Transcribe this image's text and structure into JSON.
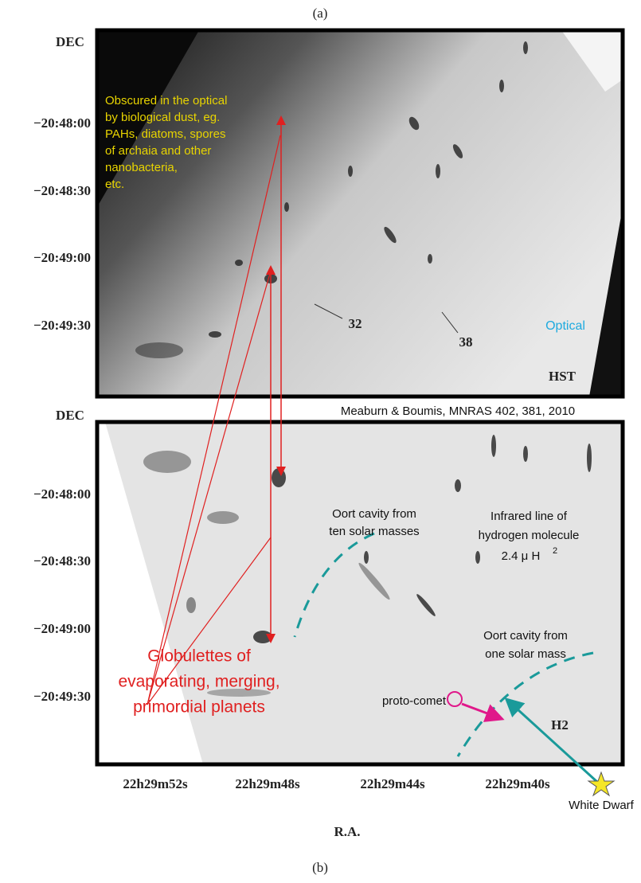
{
  "caption_top": "(a)",
  "caption_bottom": "(b)",
  "top_panel": {
    "dec_label": "DEC",
    "dec_ticks": [
      "−20:48:00",
      "−20:48:30",
      "−20:49:00",
      "−20:49:30"
    ],
    "obscured_note": [
      "Obscured in the optical",
      "by biological dust, eg.",
      "PAHs, diatoms, spores",
      "of archaia and other",
      "nanobacteria,",
      "etc."
    ],
    "marker_32": "32",
    "marker_38": "38",
    "band_label": "Optical",
    "instrument": "HST"
  },
  "reference": "Meaburn & Boumis, MNRAS 402, 381, 2010",
  "bottom_panel": {
    "dec_label": "DEC",
    "dec_ticks": [
      "−20:48:00",
      "−20:48:30",
      "−20:49:00",
      "−20:49:30"
    ],
    "oort_ten": [
      "Oort cavity from",
      "ten solar masses"
    ],
    "infrared_note": [
      "Infrared line of",
      "hydrogen molecule"
    ],
    "infrared_wavelength": "2.4 μ H",
    "infrared_superscript": "2",
    "oort_one": [
      "Oort cavity from",
      "one solar mass"
    ],
    "proto_comet": "proto-comet",
    "h2_label": "H2",
    "globulettes": [
      "Globulettes of",
      "evaporating, merging,",
      "primordial planets"
    ],
    "white_dwarf": "White Dwarf",
    "ra_ticks": [
      "22h29m52s",
      "22h29m48s",
      "22h29m44s",
      "22h29m40s"
    ],
    "ra_label": "R.A."
  }
}
